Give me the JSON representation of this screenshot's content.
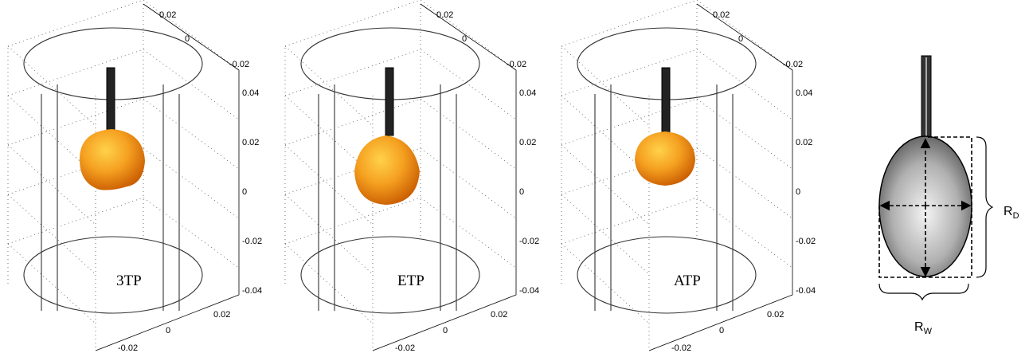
{
  "panels": [
    {
      "label": "3TP",
      "top_ticks": [
        "0.02",
        "0",
        "-0.02"
      ],
      "z_ticks": [
        "0.04",
        "0.02",
        "0",
        "-0.02",
        "-0.04"
      ],
      "bottom_ticks": [
        "0.02",
        "0",
        "-0.02"
      ]
    },
    {
      "label": "ETP",
      "top_ticks": [
        "0.02",
        "0",
        "-0.02"
      ],
      "z_ticks": [
        "0.04",
        "0.02",
        "0",
        "-0.02",
        "-0.04"
      ],
      "bottom_ticks": [
        "0.02",
        "0",
        "-0.02"
      ]
    },
    {
      "label": "ATP",
      "top_ticks": [
        "0.02",
        "0",
        "-0.02"
      ],
      "z_ticks": [
        "0.04",
        "0.02",
        "0",
        "-0.02",
        "-0.04"
      ],
      "bottom_ticks": [
        "0.02",
        "0",
        "-0.02"
      ]
    }
  ],
  "schematic": {
    "rd": {
      "main": "R",
      "sub": "D"
    },
    "rw": {
      "main": "R",
      "sub": "W"
    }
  }
}
